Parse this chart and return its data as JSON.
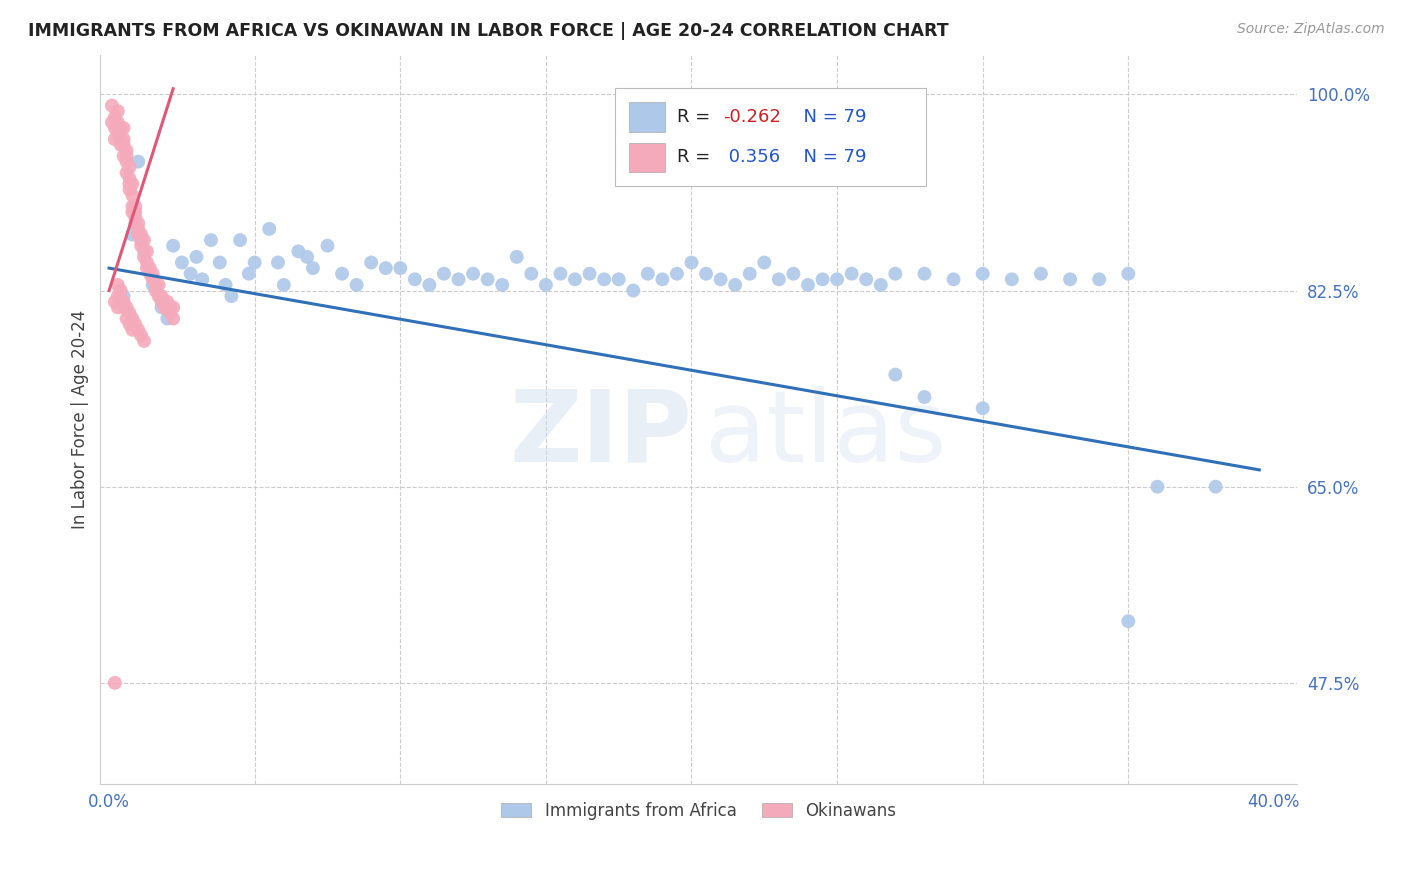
{
  "title": "IMMIGRANTS FROM AFRICA VS OKINAWAN IN LABOR FORCE | AGE 20-24 CORRELATION CHART",
  "source": "Source: ZipAtlas.com",
  "ylabel": "In Labor Force | Age 20-24",
  "r_blue": "-0.262",
  "n_blue": "79",
  "r_pink": "0.356",
  "n_pink": "79",
  "blue_color": "#adc8e8",
  "blue_line_color": "#3070b8",
  "pink_color": "#f5aabb",
  "pink_line_color": "#e05878",
  "watermark_zip": "ZIP",
  "watermark_atlas": "atlas",
  "background_color": "#ffffff",
  "grid_color": "#cccccc",
  "legend_blue_label": "Immigrants from Africa",
  "legend_pink_label": "Okinawans",
  "axis_color": "#4472c4",
  "title_color": "#222222",
  "source_color": "#999999",
  "blue_scatter_x": [
    0.005,
    0.008,
    0.01,
    0.012,
    0.015,
    0.018,
    0.02,
    0.022,
    0.025,
    0.028,
    0.03,
    0.032,
    0.035,
    0.038,
    0.04,
    0.042,
    0.045,
    0.048,
    0.05,
    0.055,
    0.058,
    0.06,
    0.065,
    0.068,
    0.07,
    0.075,
    0.08,
    0.085,
    0.09,
    0.095,
    0.1,
    0.105,
    0.11,
    0.115,
    0.12,
    0.125,
    0.13,
    0.135,
    0.14,
    0.145,
    0.15,
    0.155,
    0.16,
    0.165,
    0.17,
    0.175,
    0.18,
    0.185,
    0.19,
    0.195,
    0.2,
    0.205,
    0.21,
    0.215,
    0.22,
    0.225,
    0.23,
    0.235,
    0.24,
    0.245,
    0.25,
    0.255,
    0.26,
    0.265,
    0.27,
    0.28,
    0.29,
    0.3,
    0.31,
    0.32,
    0.33,
    0.34,
    0.35,
    0.27,
    0.28,
    0.3,
    0.35,
    0.36,
    0.38
  ],
  "blue_scatter_y": [
    0.82,
    0.875,
    0.94,
    0.86,
    0.83,
    0.81,
    0.8,
    0.865,
    0.85,
    0.84,
    0.855,
    0.835,
    0.87,
    0.85,
    0.83,
    0.82,
    0.87,
    0.84,
    0.85,
    0.88,
    0.85,
    0.83,
    0.86,
    0.855,
    0.845,
    0.865,
    0.84,
    0.83,
    0.85,
    0.845,
    0.845,
    0.835,
    0.83,
    0.84,
    0.835,
    0.84,
    0.835,
    0.83,
    0.855,
    0.84,
    0.83,
    0.84,
    0.835,
    0.84,
    0.835,
    0.835,
    0.825,
    0.84,
    0.835,
    0.84,
    0.85,
    0.84,
    0.835,
    0.83,
    0.84,
    0.85,
    0.835,
    0.84,
    0.83,
    0.835,
    0.835,
    0.84,
    0.835,
    0.83,
    0.84,
    0.84,
    0.835,
    0.84,
    0.835,
    0.84,
    0.835,
    0.835,
    0.84,
    0.75,
    0.73,
    0.72,
    0.53,
    0.65,
    0.65
  ],
  "pink_scatter_x": [
    0.001,
    0.001,
    0.002,
    0.002,
    0.002,
    0.003,
    0.003,
    0.003,
    0.004,
    0.004,
    0.004,
    0.005,
    0.005,
    0.005,
    0.005,
    0.006,
    0.006,
    0.006,
    0.006,
    0.007,
    0.007,
    0.007,
    0.007,
    0.008,
    0.008,
    0.008,
    0.008,
    0.009,
    0.009,
    0.009,
    0.009,
    0.01,
    0.01,
    0.01,
    0.011,
    0.011,
    0.011,
    0.012,
    0.012,
    0.013,
    0.013,
    0.013,
    0.014,
    0.014,
    0.015,
    0.015,
    0.016,
    0.016,
    0.017,
    0.017,
    0.018,
    0.018,
    0.019,
    0.019,
    0.02,
    0.02,
    0.021,
    0.021,
    0.022,
    0.022,
    0.003,
    0.004,
    0.005,
    0.006,
    0.007,
    0.008,
    0.009,
    0.01,
    0.011,
    0.012,
    0.003,
    0.004,
    0.005,
    0.006,
    0.007,
    0.008,
    0.002,
    0.003,
    0.002
  ],
  "pink_scatter_y": [
    0.975,
    0.99,
    0.98,
    0.97,
    0.96,
    0.975,
    0.965,
    0.985,
    0.97,
    0.96,
    0.955,
    0.955,
    0.945,
    0.96,
    0.97,
    0.94,
    0.95,
    0.93,
    0.945,
    0.92,
    0.935,
    0.925,
    0.915,
    0.91,
    0.9,
    0.92,
    0.895,
    0.895,
    0.885,
    0.9,
    0.89,
    0.88,
    0.875,
    0.885,
    0.87,
    0.875,
    0.865,
    0.855,
    0.87,
    0.845,
    0.85,
    0.86,
    0.84,
    0.845,
    0.835,
    0.84,
    0.83,
    0.825,
    0.82,
    0.83,
    0.82,
    0.815,
    0.815,
    0.81,
    0.81,
    0.815,
    0.81,
    0.805,
    0.81,
    0.8,
    0.83,
    0.825,
    0.815,
    0.81,
    0.805,
    0.8,
    0.795,
    0.79,
    0.785,
    0.78,
    0.82,
    0.815,
    0.81,
    0.8,
    0.795,
    0.79,
    0.815,
    0.81,
    0.475
  ]
}
